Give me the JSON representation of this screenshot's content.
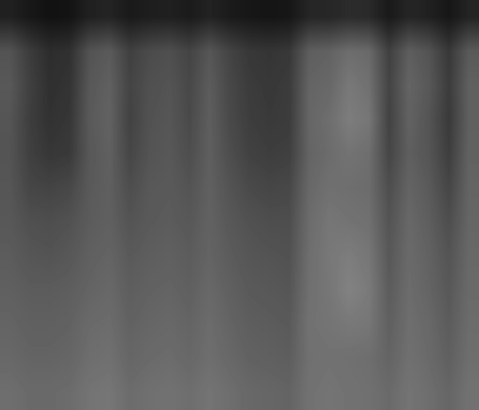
{
  "chart_data": {
    "type": "heatmap",
    "color": "gray",
    "tick_labels": false,
    "color_range": [
      0,
      255
    ],
    "cells": [
      [
        33,
        24,
        18,
        20,
        33,
        36,
        26,
        30,
        32,
        27,
        35,
        27,
        23,
        21,
        23,
        38,
        39,
        44,
        42,
        26,
        38,
        33,
        23,
        36
      ],
      [
        83,
        60,
        45,
        49,
        83,
        90,
        64,
        75,
        79,
        68,
        86,
        68,
        56,
        53,
        56,
        94,
        98,
        109,
        105,
        64,
        94,
        83,
        56,
        90
      ],
      [
        88,
        64,
        48,
        52,
        88,
        96,
        68,
        80,
        84,
        72,
        92,
        72,
        60,
        56,
        60,
        100,
        104,
        120,
        112,
        68,
        100,
        88,
        60,
        96
      ],
      [
        85,
        62,
        50,
        55,
        90,
        98,
        66,
        82,
        86,
        74,
        94,
        74,
        62,
        58,
        60,
        102,
        110,
        125,
        118,
        66,
        98,
        84,
        58,
        96
      ],
      [
        84,
        64,
        55,
        58,
        88,
        96,
        70,
        84,
        88,
        78,
        95,
        78,
        66,
        62,
        64,
        100,
        108,
        115,
        110,
        70,
        95,
        85,
        62,
        98
      ],
      [
        86,
        70,
        68,
        72,
        90,
        95,
        78,
        88,
        90,
        84,
        96,
        84,
        74,
        70,
        72,
        104,
        112,
        110,
        108,
        78,
        100,
        90,
        70,
        100
      ],
      [
        88,
        80,
        78,
        82,
        92,
        96,
        84,
        90,
        92,
        88,
        98,
        88,
        82,
        78,
        78,
        108,
        118,
        115,
        112,
        84,
        104,
        94,
        78,
        102
      ],
      [
        92,
        86,
        84,
        88,
        96,
        100,
        90,
        94,
        96,
        92,
        100,
        92,
        86,
        84,
        82,
        110,
        120,
        125,
        118,
        88,
        106,
        98,
        84,
        104
      ],
      [
        96,
        92,
        92,
        94,
        100,
        104,
        94,
        98,
        100,
        96,
        104,
        96,
        90,
        88,
        86,
        112,
        118,
        130,
        122,
        92,
        108,
        100,
        88,
        106
      ],
      [
        100,
        96,
        96,
        98,
        106,
        108,
        98,
        102,
        104,
        100,
        108,
        100,
        94,
        92,
        90,
        114,
        116,
        120,
        118,
        96,
        110,
        104,
        92,
        108
      ],
      [
        104,
        100,
        100,
        102,
        110,
        112,
        102,
        106,
        108,
        104,
        110,
        104,
        98,
        96,
        94,
        112,
        114,
        112,
        110,
        100,
        112,
        106,
        96,
        110
      ],
      [
        110,
        106,
        106,
        108,
        116,
        118,
        108,
        112,
        114,
        110,
        116,
        110,
        104,
        102,
        100,
        114,
        116,
        114,
        112,
        106,
        116,
        110,
        102,
        114
      ]
    ]
  }
}
